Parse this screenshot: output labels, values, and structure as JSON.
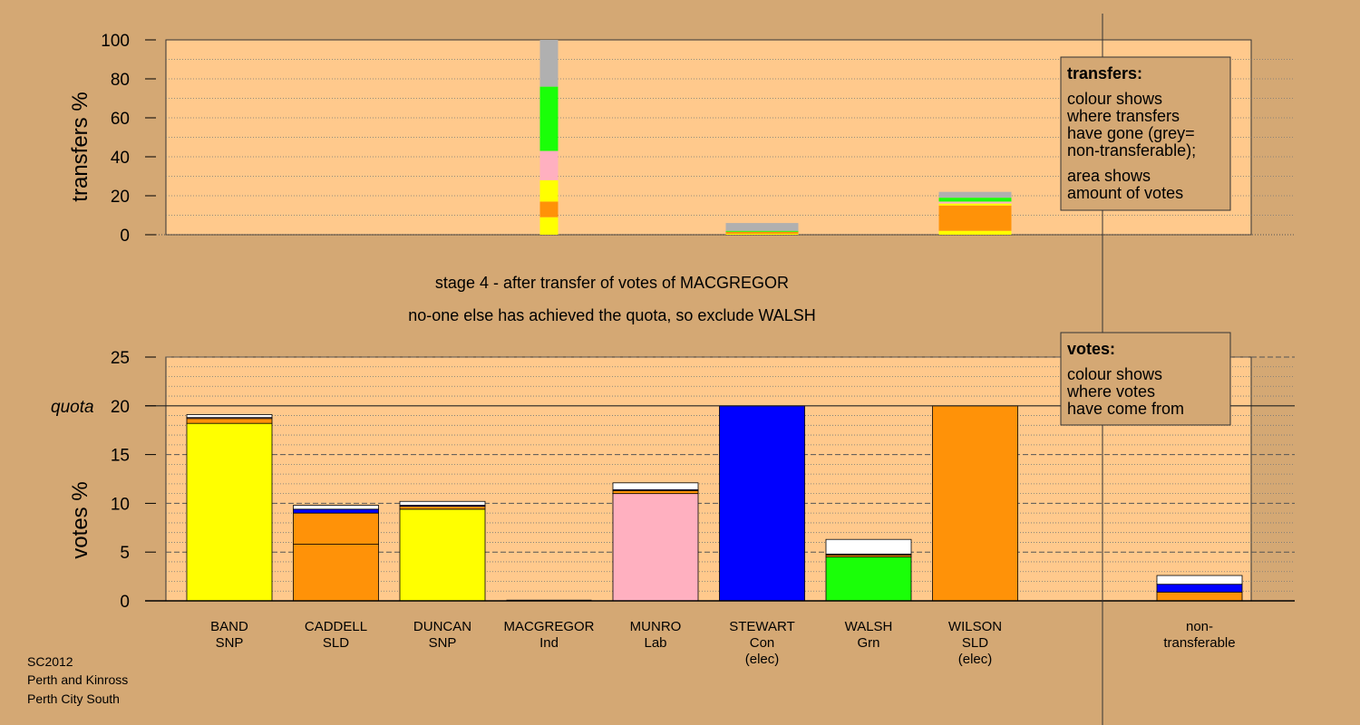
{
  "colors": {
    "background": "#d4a874",
    "plot_bg": "#ffc98c",
    "SNP": "#ffff00",
    "SLD": "#ff9208",
    "Lab": "#ffb0c0",
    "Con": "#0000ff",
    "Grn": "#1aff08",
    "Ind": "#b0b0b0",
    "nontransferable": "#ffffff",
    "grey": "#b0b0b0"
  },
  "title": {
    "line1": "stage 4 - after transfer of votes of MACGREGOR",
    "line2": "no-one else has achieved the quota, so exclude WALSH"
  },
  "footer": [
    "SC2012",
    "Perth and Kinross",
    "Perth City South"
  ],
  "legend_transfers": {
    "heading": "transfers:",
    "lines": [
      "colour shows",
      "where transfers",
      "have gone (grey=",
      "non-transferable);",
      "area shows",
      "amount of votes"
    ]
  },
  "legend_votes": {
    "heading": "votes:",
    "lines": [
      "colour shows",
      "where votes",
      "have come from"
    ]
  },
  "chart_data": [
    {
      "type": "bar",
      "name": "transfers",
      "ylabel": "transfers %",
      "ylim": [
        0,
        100
      ],
      "yticks": [
        0,
        20,
        40,
        60,
        80,
        100
      ],
      "grid": true,
      "bars": [
        {
          "candidate": "MACGREGOR",
          "width": 1.0,
          "segments": [
            {
              "party": "SNP",
              "value": 9
            },
            {
              "party": "SLD",
              "value": 8
            },
            {
              "party": "SNP",
              "value": 11
            },
            {
              "party": "Lab",
              "value": 15
            },
            {
              "party": "Grn",
              "value": 33
            },
            {
              "party": "grey",
              "value": 24
            }
          ]
        },
        {
          "candidate": "STEWART",
          "width": 4.0,
          "segments": [
            {
              "party": "SNP",
              "value": 0.5
            },
            {
              "party": "SLD",
              "value": 1
            },
            {
              "party": "Grn",
              "value": 0.5
            },
            {
              "party": "grey",
              "value": 4
            }
          ]
        },
        {
          "candidate": "WILSON",
          "width": 4.0,
          "segments": [
            {
              "party": "SNP",
              "value": 2
            },
            {
              "party": "SLD",
              "value": 13
            },
            {
              "party": "SNP",
              "value": 1
            },
            {
              "party": "Lab",
              "value": 1
            },
            {
              "party": "Grn",
              "value": 2
            },
            {
              "party": "grey",
              "value": 3
            }
          ]
        }
      ]
    },
    {
      "type": "bar",
      "name": "votes",
      "ylabel": "votes %",
      "ylim": [
        0,
        25
      ],
      "yticks": [
        0,
        5,
        10,
        15,
        20,
        25
      ],
      "quota": 20,
      "quota_label": "quota",
      "grid": true,
      "categories": [
        {
          "name": "BAND",
          "party": "SNP",
          "note": ""
        },
        {
          "name": "CADDELL",
          "party": "SLD",
          "note": ""
        },
        {
          "name": "DUNCAN",
          "party": "SNP",
          "note": ""
        },
        {
          "name": "MACGREGOR",
          "party": "Ind",
          "note": ""
        },
        {
          "name": "MUNRO",
          "party": "Lab",
          "note": ""
        },
        {
          "name": "STEWART",
          "party": "Con",
          "note": "(elec)"
        },
        {
          "name": "WALSH",
          "party": "Grn",
          "note": ""
        },
        {
          "name": "WILSON",
          "party": "SLD",
          "note": "(elec)"
        }
      ],
      "nontransferable_label": [
        "non-",
        "transferable"
      ],
      "stacks": [
        [
          {
            "party": "SNP",
            "value": 18.2
          },
          {
            "party": "SLD",
            "value": 0.5
          },
          {
            "party": "Lab",
            "value": 0.1
          },
          {
            "party": "nontransferable",
            "value": 0.3
          }
        ],
        [
          {
            "party": "SLD",
            "value": 5.8
          },
          {
            "party": "SLD",
            "value": 3.2
          },
          {
            "party": "Con",
            "value": 0.4
          },
          {
            "party": "nontransferable",
            "value": 0.4
          }
        ],
        [
          {
            "party": "SNP",
            "value": 9.4
          },
          {
            "party": "SLD",
            "value": 0.3
          },
          {
            "party": "Con",
            "value": 0.1
          },
          {
            "party": "nontransferable",
            "value": 0.4
          }
        ],
        [],
        [
          {
            "party": "Lab",
            "value": 11.0
          },
          {
            "party": "SLD",
            "value": 0.3
          },
          {
            "party": "Con",
            "value": 0.1
          },
          {
            "party": "nontransferable",
            "value": 0.7
          }
        ],
        [
          {
            "party": "Con",
            "value": 20.0
          }
        ],
        [
          {
            "party": "Grn",
            "value": 4.5
          },
          {
            "party": "SLD",
            "value": 0.2
          },
          {
            "party": "Con",
            "value": 0.1
          },
          {
            "party": "nontransferable",
            "value": 1.5
          }
        ],
        [
          {
            "party": "SLD",
            "value": 20.0
          }
        ]
      ],
      "nontransferable_stack": [
        {
          "party": "SLD",
          "value": 0.9
        },
        {
          "party": "Con",
          "value": 0.8
        },
        {
          "party": "nontransferable",
          "value": 0.9
        }
      ]
    }
  ]
}
